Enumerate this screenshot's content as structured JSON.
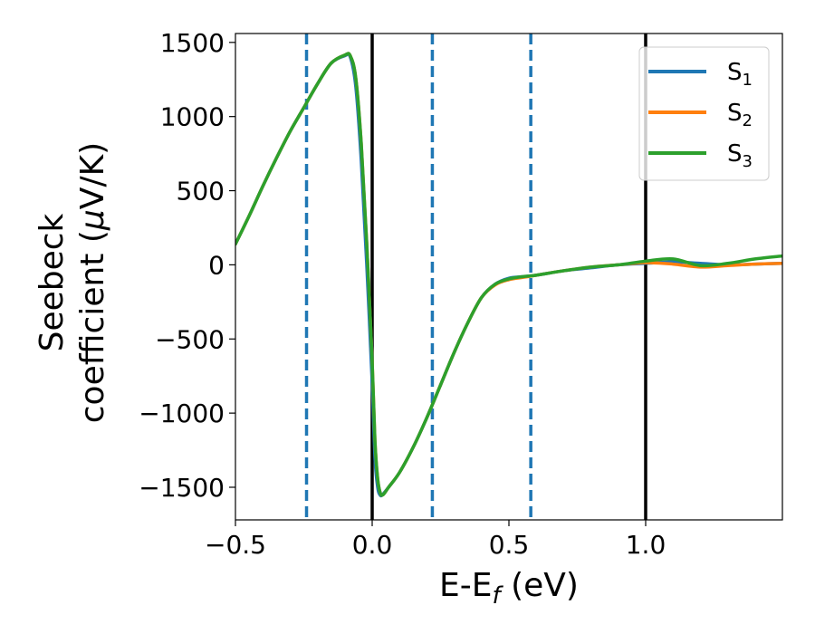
{
  "chart_data": {
    "type": "line",
    "xlabel": "E-E",
    "xlabel_sub": "f",
    "xlabel_unit": " (eV)",
    "ylabel_line1": "Seebeck",
    "ylabel_line2": "coefficient  (",
    "ylabel_mu": "μ",
    "ylabel_unit": "V/K)",
    "xlim": [
      -0.5,
      1.5
    ],
    "ylim": [
      -1720,
      1560
    ],
    "x_ticks": [
      -0.5,
      0.0,
      0.5,
      1.0
    ],
    "x_tick_labels": [
      "−0.5",
      "0.0",
      "0.5",
      "1.0"
    ],
    "y_ticks": [
      1500,
      1000,
      500,
      0,
      -500,
      -1000,
      -1500
    ],
    "y_tick_labels": [
      "1500",
      "1000",
      "500",
      "0",
      "−500",
      "−1000",
      "−1500"
    ],
    "grid": false,
    "legend_position": "top-right",
    "vlines_solid": [
      0.0,
      1.0
    ],
    "vlines_dashed": [
      -0.24,
      0.22,
      0.58
    ],
    "vline_solid_color": "#000000",
    "vline_dashed_color": "#1f77b4",
    "series": [
      {
        "name": "S",
        "sub": "1",
        "color": "#1f77b4",
        "x": [
          -0.5,
          -0.45,
          -0.4,
          -0.35,
          -0.3,
          -0.25,
          -0.2,
          -0.15,
          -0.1,
          -0.08,
          -0.06,
          -0.04,
          -0.02,
          0.0,
          0.01,
          0.02,
          0.03,
          0.04,
          0.06,
          0.1,
          0.15,
          0.2,
          0.25,
          0.3,
          0.35,
          0.4,
          0.45,
          0.5,
          0.55,
          0.6,
          0.7,
          0.8,
          0.9,
          1.0,
          1.1,
          1.2,
          1.3,
          1.4,
          1.5
        ],
        "y": [
          140,
          330,
          530,
          720,
          900,
          1060,
          1220,
          1360,
          1410,
          1400,
          1200,
          700,
          0,
          -800,
          -1300,
          -1500,
          -1555,
          -1545,
          -1500,
          -1400,
          -1230,
          -1030,
          -810,
          -590,
          -390,
          -220,
          -130,
          -90,
          -80,
          -70,
          -40,
          -20,
          0,
          10,
          20,
          10,
          0,
          5,
          10
        ]
      },
      {
        "name": "S",
        "sub": "2",
        "color": "#ff7f0e",
        "x": [
          -0.5,
          -0.45,
          -0.4,
          -0.35,
          -0.3,
          -0.25,
          -0.2,
          -0.15,
          -0.1,
          -0.08,
          -0.06,
          -0.04,
          -0.02,
          0.0,
          0.01,
          0.02,
          0.03,
          0.04,
          0.06,
          0.1,
          0.15,
          0.2,
          0.25,
          0.3,
          0.35,
          0.4,
          0.45,
          0.5,
          0.55,
          0.6,
          0.7,
          0.8,
          0.9,
          1.0,
          1.1,
          1.2,
          1.3,
          1.4,
          1.5
        ],
        "y": [
          140,
          330,
          530,
          720,
          900,
          1060,
          1220,
          1360,
          1415,
          1410,
          1260,
          820,
          150,
          -650,
          -1180,
          -1440,
          -1540,
          -1550,
          -1500,
          -1400,
          -1230,
          -1030,
          -810,
          -590,
          -390,
          -220,
          -135,
          -100,
          -85,
          -70,
          -40,
          -15,
          0,
          15,
          5,
          -15,
          -5,
          5,
          10
        ]
      },
      {
        "name": "S",
        "sub": "3",
        "color": "#2ca02c",
        "x": [
          -0.5,
          -0.45,
          -0.4,
          -0.35,
          -0.3,
          -0.25,
          -0.2,
          -0.15,
          -0.1,
          -0.08,
          -0.06,
          -0.04,
          -0.02,
          0.0,
          0.01,
          0.02,
          0.03,
          0.04,
          0.06,
          0.1,
          0.15,
          0.2,
          0.25,
          0.3,
          0.35,
          0.4,
          0.45,
          0.5,
          0.55,
          0.6,
          0.7,
          0.8,
          0.9,
          1.0,
          1.1,
          1.2,
          1.3,
          1.4,
          1.5
        ],
        "y": [
          140,
          330,
          530,
          720,
          900,
          1060,
          1220,
          1360,
          1415,
          1410,
          1260,
          820,
          150,
          -650,
          -1180,
          -1440,
          -1540,
          -1550,
          -1500,
          -1400,
          -1230,
          -1030,
          -810,
          -590,
          -390,
          -220,
          -130,
          -95,
          -80,
          -70,
          -40,
          -15,
          0,
          25,
          40,
          -5,
          10,
          40,
          60
        ]
      }
    ]
  }
}
